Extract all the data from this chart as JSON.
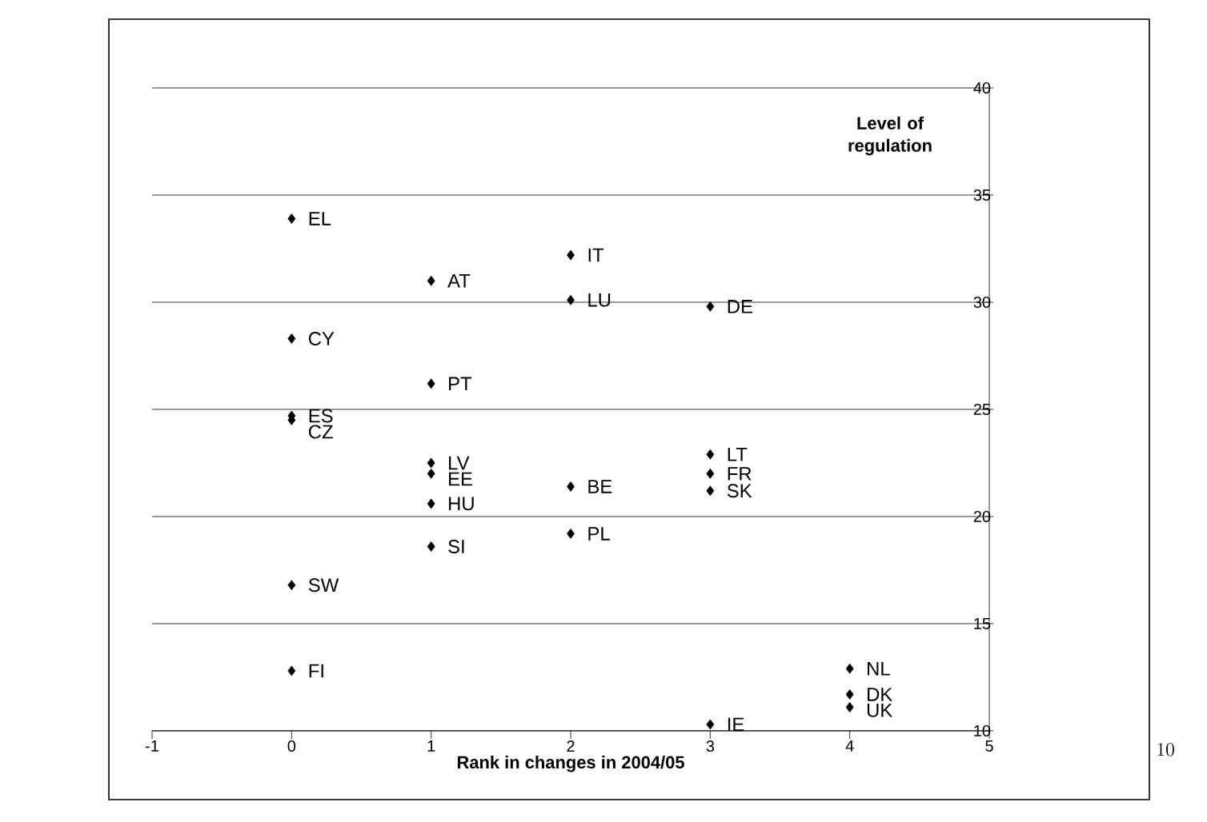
{
  "chart_data": {
    "type": "scatter",
    "xlabel": "Rank in changes in 2004/05",
    "ylabel": "Level of regulation",
    "x": [
      0,
      0,
      0,
      0,
      0,
      0,
      1,
      1,
      1,
      1,
      1,
      1,
      2,
      2,
      2,
      2,
      3,
      3,
      3,
      3,
      3,
      4,
      4,
      4
    ],
    "series": [
      {
        "color": "#000000",
        "values": [
          33.9,
          28.3,
          24.7,
          24.5,
          16.8,
          12.8,
          31.0,
          26.2,
          22.5,
          22.0,
          20.6,
          18.6,
          32.2,
          30.1,
          21.4,
          19.2,
          29.8,
          22.9,
          22.0,
          21.2,
          10.3,
          12.9,
          11.7,
          11.1
        ]
      }
    ],
    "xlim": [
      -1,
      5
    ],
    "xticks": [
      -1,
      0,
      1,
      2,
      3,
      4,
      5
    ],
    "ylim": [
      10,
      40
    ],
    "yticks": [
      10,
      15,
      20,
      25,
      30,
      35,
      40
    ],
    "grid": "y",
    "marker": "diamond",
    "annotations": [
      {
        "text": "EL",
        "x": 0,
        "y": 33.9
      },
      {
        "text": "CY",
        "x": 0,
        "y": 28.3
      },
      {
        "text": "ES",
        "x": 0,
        "y": 24.7
      },
      {
        "text": "CZ",
        "x": 0,
        "y": 24.5
      },
      {
        "text": "SW",
        "x": 0,
        "y": 16.8
      },
      {
        "text": "FI",
        "x": 0,
        "y": 12.8
      },
      {
        "text": "AT",
        "x": 1,
        "y": 31.0
      },
      {
        "text": "PT",
        "x": 1,
        "y": 26.2
      },
      {
        "text": "LV",
        "x": 1,
        "y": 22.5
      },
      {
        "text": "EE",
        "x": 1,
        "y": 22.0
      },
      {
        "text": "HU",
        "x": 1,
        "y": 20.6
      },
      {
        "text": "SI",
        "x": 1,
        "y": 18.6
      },
      {
        "text": "IT",
        "x": 2,
        "y": 32.2
      },
      {
        "text": "LU",
        "x": 2,
        "y": 30.1
      },
      {
        "text": "BE",
        "x": 2,
        "y": 21.4
      },
      {
        "text": "PL",
        "x": 2,
        "y": 19.2
      },
      {
        "text": "DE",
        "x": 3,
        "y": 29.8
      },
      {
        "text": "LT",
        "x": 3,
        "y": 22.9
      },
      {
        "text": "FR",
        "x": 3,
        "y": 22.0
      },
      {
        "text": "SK",
        "x": 3,
        "y": 21.2
      },
      {
        "text": "IE",
        "x": 3,
        "y": 10.3
      },
      {
        "text": "NL",
        "x": 4,
        "y": 12.9
      },
      {
        "text": "DK",
        "x": 4,
        "y": 11.7
      },
      {
        "text": "UK",
        "x": 4,
        "y": 11.1
      },
      "10"
    ]
  }
}
